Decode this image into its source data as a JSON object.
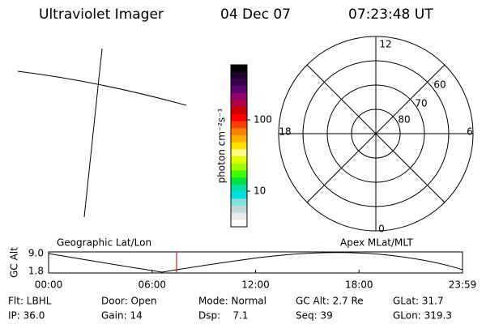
{
  "header": {
    "instrument": "Ultraviolet Imager",
    "date": "04 Dec 07",
    "time": "07:23:48 UT"
  },
  "colorbar": {
    "label": "photon cm⁻²s⁻¹",
    "ticks": [
      "100",
      "10"
    ]
  },
  "polar": {
    "labels": {
      "top": "12",
      "bottom": "0",
      "left": "18",
      "right": "6"
    },
    "rings": [
      "60",
      "70",
      "80"
    ]
  },
  "timeline": {
    "left_title": "Geographic Lat/Lon",
    "right_title": "Apex MLat/MLT",
    "ylabel": "GC Alt",
    "yticks": [
      "9.0",
      "1.8"
    ],
    "xticks": [
      "00:00",
      "06:00",
      "12:00",
      "18:00",
      "23:59"
    ]
  },
  "info": {
    "rows": [
      [
        "Flt: LBHL",
        "Door: Open",
        "Mode: Normal",
        "GC Alt: 2.7 Re",
        "GLat: 31.7"
      ],
      [
        "IP: 36.0",
        "Gain: 14",
        "Dsp:    7.1",
        "Seq: 39",
        "GLon: 319.3"
      ]
    ]
  }
}
